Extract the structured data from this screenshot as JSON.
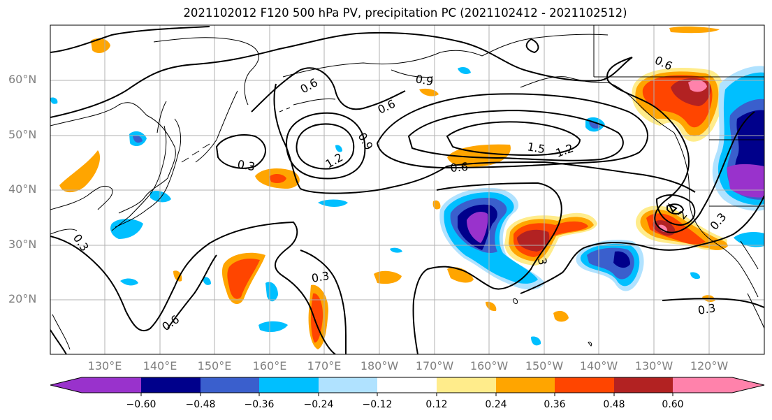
{
  "title": "2021102012 F120 500 hPa PV, precipitation PC (2021102412 - 2021102512)",
  "map": {
    "lat_labels": [
      "60°N",
      "50°N",
      "40°N",
      "30°N",
      "20°N"
    ],
    "lon_labels": [
      "130°E",
      "140°E",
      "150°E",
      "160°E",
      "170°E",
      "180°W",
      "170°W",
      "160°W",
      "150°W",
      "140°W",
      "130°W",
      "120°W"
    ],
    "pv_contour_labels": [
      "0.6",
      "0.9",
      "0.6",
      "0.3",
      "1.2",
      "0.9",
      "0.6",
      "1.5",
      "1.2",
      "0.6",
      "0.3",
      "0.3",
      "0.6",
      "0.3",
      "0.3",
      "2",
      "3"
    ],
    "contour_color": "#000000",
    "grid": true
  },
  "colorbar": {
    "ticks": [
      "−0.60",
      "−0.48",
      "−0.36",
      "−0.24",
      "−0.12",
      "0.12",
      "0.24",
      "0.36",
      "0.48",
      "0.60"
    ],
    "colors": [
      "#9932cc",
      "#00008b",
      "#3a5fcd",
      "#00bfff",
      "#b0e2ff",
      "#ffffff",
      "#ffec8b",
      "#ffa500",
      "#ff4500",
      "#b22222",
      "#ff82ab"
    ],
    "extend": "both"
  }
}
